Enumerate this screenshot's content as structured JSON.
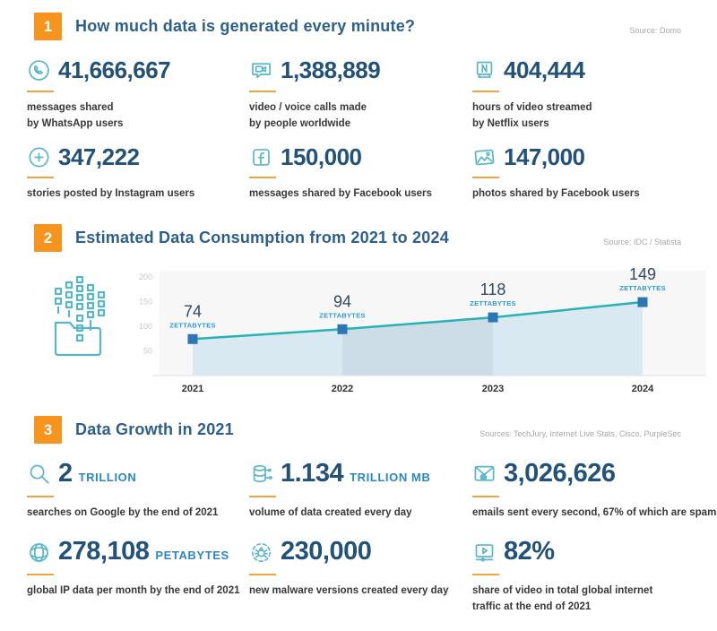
{
  "colors": {
    "accent_orange": "#F7941E",
    "underline_orange": "#F0A43C",
    "title_blue": "#2D5F8D",
    "value_navy": "#225179",
    "unit_blue": "#2E86C1",
    "icon_teal": "#58B7C7",
    "chart_line_teal": "#29B2B6",
    "chart_marker_blue": "#2E75B6",
    "chart_area_light": "#D8E9F2",
    "chart_area_dark": "#CCDDE8"
  },
  "sections": [
    {
      "badge": "1",
      "title": "How much data is generated every minute?",
      "source": "Source: Domo",
      "stats": [
        {
          "icon": "whatsapp-icon",
          "value": "41,666,667",
          "label": "messages shared\nby WhatsApp users"
        },
        {
          "icon": "video-call-icon",
          "value": "1,388,889",
          "label": "video / voice calls made\nby people worldwide"
        },
        {
          "icon": "netflix-icon",
          "value": "404,444",
          "label": "hours of video streamed\nby Netflix users"
        },
        {
          "icon": "instagram-icon",
          "value": "347,222",
          "label": "stories posted by Instagram users"
        },
        {
          "icon": "facebook-icon",
          "value": "150,000",
          "label": "messages shared by Facebook users"
        },
        {
          "icon": "photo-icon",
          "value": "147,000",
          "label": "photos shared by Facebook users"
        }
      ]
    },
    {
      "badge": "2",
      "title": "Estimated Data Consumption from 2021 to 2024",
      "source": "Source: IDC / Statista"
    },
    {
      "badge": "3",
      "title": "Data Growth in 2021",
      "source": "Sources: TechJury, Internet Live Stats, Cisco, PurpleSec",
      "stats": [
        {
          "icon": "search-icon",
          "value": "2",
          "unit": "TRILLION",
          "label": "searches on Google by the end of 2021"
        },
        {
          "icon": "database-icon",
          "value": "1.134",
          "unit": "TRILLION MB",
          "label": "volume of data created every day"
        },
        {
          "icon": "email-icon",
          "value": "3,026,626",
          "label": "emails sent every second, 67% of which are spam"
        },
        {
          "icon": "globe-icon",
          "value": "278,108",
          "unit": "PETABYTES",
          "label": "global IP data per month by the end of 2021"
        },
        {
          "icon": "malware-icon",
          "value": "230,000",
          "label": "new malware versions created every day"
        },
        {
          "icon": "video-player-icon",
          "value": "82%",
          "label": "share of video in total global internet\ntraffic at the end of 2021"
        }
      ]
    }
  ],
  "chart_data": {
    "type": "area",
    "title": "Estimated Data Consumption from 2021 to 2024",
    "categories": [
      "2021",
      "2022",
      "2023",
      "2024"
    ],
    "values": [
      74,
      94,
      118,
      149
    ],
    "unit": "ZETTABYTES",
    "xlabel": "",
    "ylabel": "",
    "ylim": [
      0,
      200
    ],
    "yticks": [
      50,
      100,
      150,
      200
    ],
    "grid": false,
    "legend": "none"
  }
}
